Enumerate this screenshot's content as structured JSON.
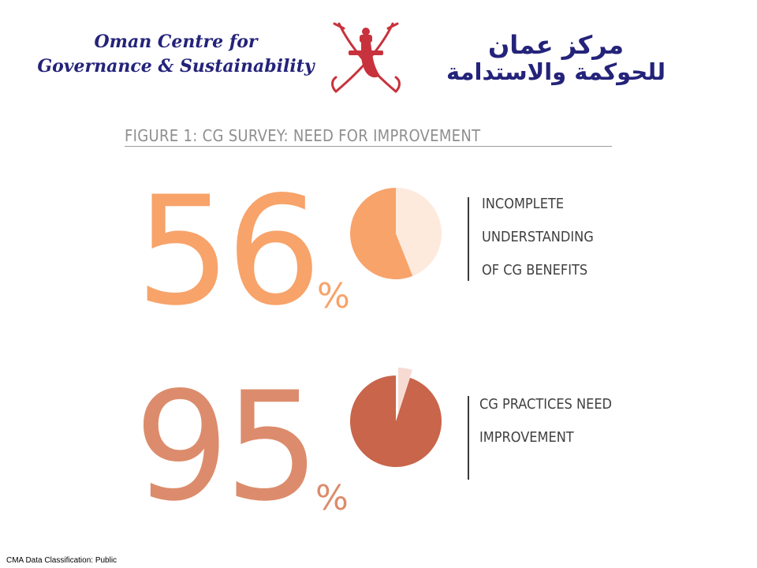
{
  "header": {
    "org_name_en_line1": "Oman Centre for",
    "org_name_en_line2": "Governance & Sustainability",
    "org_name_ar_line1": "مركز عمان",
    "org_name_ar_line2": "للحوكمة والاستدامة",
    "emblem_icon": "oman-khanjar-emblem-icon",
    "brand_color": "#24237a",
    "emblem_color": "#c8323c"
  },
  "chart_data": {
    "type": "pie",
    "title": "FIGURE 1: CG SURVEY: NEED FOR IMPROVEMENT",
    "stats": [
      {
        "value": 56,
        "number_text": "56",
        "unit": "%",
        "label_lines": [
          "INCOMPLETE",
          "UNDERSTANDING",
          "OF CG BENEFITS"
        ],
        "main_color": "#f7a36a",
        "rest_color": "#fdeadd",
        "number_color": "#f7a36a"
      },
      {
        "value": 95,
        "number_text": "95",
        "unit": "%",
        "label_lines": [
          "CG PRACTICES NEED",
          "IMPROVEMENT"
        ],
        "main_color": "#c8654a",
        "rest_color": "#f7dbd2",
        "number_color": "#dc8c6c"
      }
    ]
  },
  "footer": {
    "classification": "CMA Data Classification: Public"
  }
}
